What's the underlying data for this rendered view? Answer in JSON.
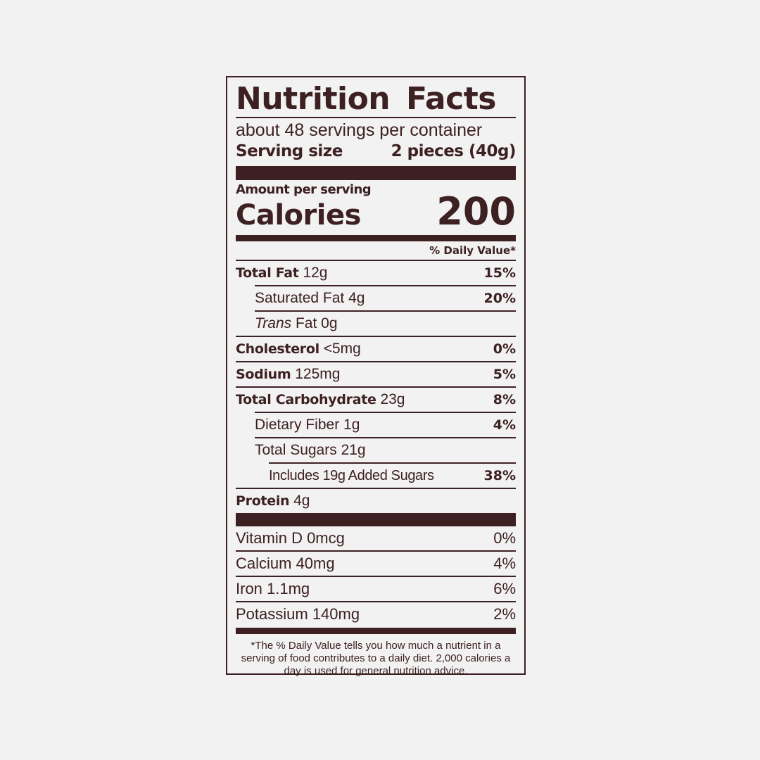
{
  "title": "Nutrition Facts",
  "servings_per_container": "about 48 servings per container",
  "serving_size": {
    "label": "Serving size",
    "value": "2 pieces (40g)"
  },
  "amount_per_serving": "Amount per serving",
  "calories": {
    "label": "Calories",
    "value": "200"
  },
  "daily_value_header": "% Daily Value*",
  "nutrients": [
    {
      "name": "Total Fat",
      "amount": "12g",
      "dv": "15%"
    },
    {
      "name": "Saturated Fat",
      "amount": "4g",
      "dv": "20%"
    },
    {
      "name": "Trans",
      "name_suffix": "Fat",
      "amount": "0g",
      "dv": ""
    },
    {
      "name": "Cholesterol",
      "amount": "<5mg",
      "dv": "0%"
    },
    {
      "name": "Sodium",
      "amount": "125mg",
      "dv": "5%"
    },
    {
      "name": "Total Carbohydrate",
      "amount": "23g",
      "dv": "8%"
    },
    {
      "name": "Dietary Fiber",
      "amount": "1g",
      "dv": "4%"
    },
    {
      "name": "Total Sugars",
      "amount": "21g",
      "dv": ""
    },
    {
      "name": "Includes 19g Added Sugars",
      "amount": "",
      "dv": "38%"
    },
    {
      "name": "Protein",
      "amount": "4g",
      "dv": ""
    }
  ],
  "vitamins": [
    {
      "name": "Vitamin D 0mcg",
      "dv": "0%"
    },
    {
      "name": "Calcium 40mg",
      "dv": "4%"
    },
    {
      "name": "Iron 1.1mg",
      "dv": "6%"
    },
    {
      "name": "Potassium 140mg",
      "dv": "2%"
    }
  ],
  "footnote": "*The % Daily Value tells you how much a nutrient in a serving of food contributes to a daily diet. 2,000 calories a day is used for general nutrition advice.",
  "colors": {
    "ink": "#3d2022",
    "background": "#f2f2f2"
  }
}
